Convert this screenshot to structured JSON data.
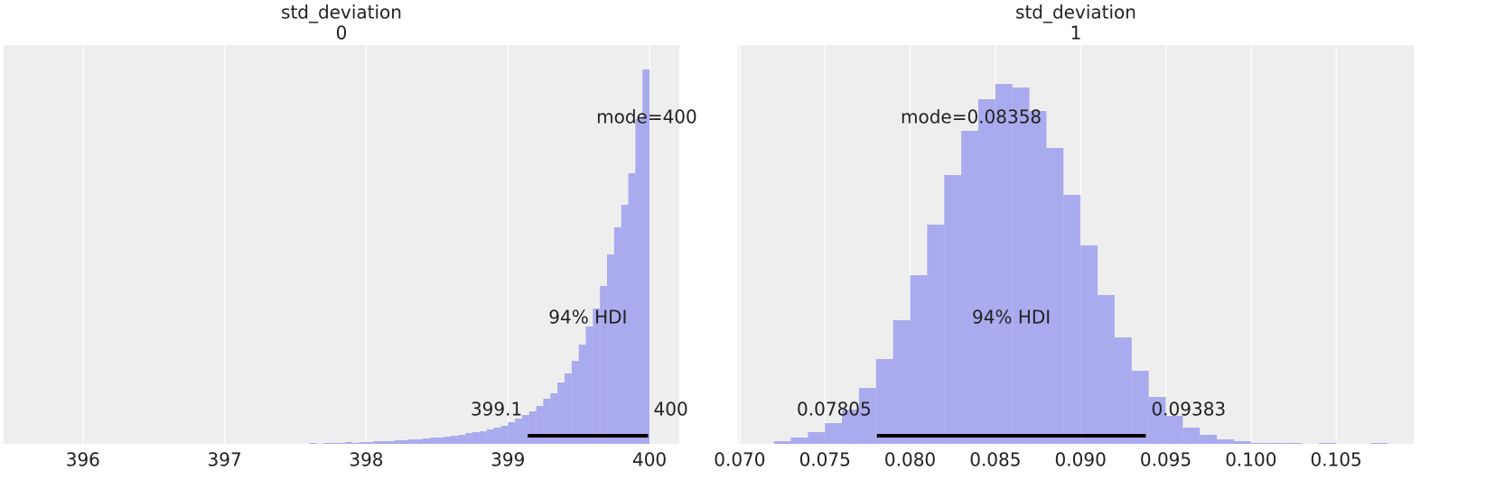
{
  "chart_data": [
    {
      "type": "histogram",
      "title": "std_deviation",
      "subtitle": "0",
      "color": "#aaaaee",
      "grid": true,
      "bins": [
        397.6,
        397.65,
        397.7,
        397.75,
        397.8,
        397.85,
        397.9,
        397.95,
        398.0,
        398.05,
        398.1,
        398.15,
        398.2,
        398.25,
        398.3,
        398.35,
        398.4,
        398.45,
        398.5,
        398.55,
        398.6,
        398.65,
        398.7,
        398.75,
        398.8,
        398.85,
        398.9,
        398.95,
        399.0,
        399.05,
        399.1,
        399.15,
        399.2,
        399.25,
        399.3,
        399.35,
        399.4,
        399.45,
        399.5,
        399.55,
        399.6,
        399.65,
        399.7,
        399.75,
        399.8,
        399.85,
        399.9,
        399.95,
        400.0
      ],
      "values": [
        1,
        0,
        1,
        1,
        1,
        2,
        1,
        2,
        2,
        3,
        3,
        3,
        4,
        4,
        5,
        5,
        6,
        7,
        7,
        8,
        9,
        10,
        12,
        13,
        14,
        16,
        18,
        20,
        24,
        28,
        32,
        36,
        42,
        50,
        56,
        68,
        78,
        92,
        110,
        130,
        150,
        175,
        210,
        240,
        265,
        300,
        360,
        415
      ],
      "xlim": [
        395.44,
        400.21
      ],
      "xticks": [
        396,
        397,
        398,
        399,
        400
      ],
      "ylim": [
        0,
        442
      ],
      "mode": 399.98,
      "mode_label": "mode=400",
      "hdi": {
        "label": "94% HDI",
        "low": 399.14,
        "high": 399.99,
        "low_label": "399.1",
        "high_label": "400"
      }
    },
    {
      "type": "histogram",
      "title": "std_deviation",
      "subtitle": "1",
      "color": "#aaaaee",
      "grid": true,
      "bins": [
        0.072,
        0.073,
        0.074,
        0.075,
        0.076,
        0.077,
        0.078,
        0.079,
        0.08,
        0.081,
        0.082,
        0.083,
        0.084,
        0.085,
        0.086,
        0.087,
        0.088,
        0.089,
        0.09,
        0.091,
        0.092,
        0.093,
        0.094,
        0.095,
        0.096,
        0.097,
        0.098,
        0.099,
        0.1,
        0.101,
        0.102,
        0.103,
        0.104,
        0.105,
        0.106,
        0.107,
        0.108
      ],
      "values": [
        3,
        7,
        13,
        23,
        38,
        62,
        94,
        137,
        187,
        243,
        298,
        347,
        382,
        399,
        395,
        369,
        328,
        276,
        220,
        165,
        118,
        81,
        52,
        31,
        18,
        10,
        5,
        3,
        1,
        1,
        1,
        0,
        1,
        0,
        0,
        1
      ],
      "xlim": [
        0.0699,
        0.10955
      ],
      "xticks": [
        {
          "value": 0.07,
          "label": "0.070"
        },
        0.075,
        {
          "value": 0.08,
          "label": "0.080"
        },
        0.085,
        {
          "value": 0.09,
          "label": "0.090"
        },
        0.095,
        {
          "value": 0.1,
          "label": "0.100"
        },
        0.105
      ],
      "ylim": [
        0,
        442
      ],
      "mode": 0.08358,
      "mode_label": "mode=0.08358",
      "hdi": {
        "label": "94% HDI",
        "low": 0.07805,
        "high": 0.09383,
        "low_label": "0.07805",
        "high_label": "0.09383"
      }
    }
  ]
}
